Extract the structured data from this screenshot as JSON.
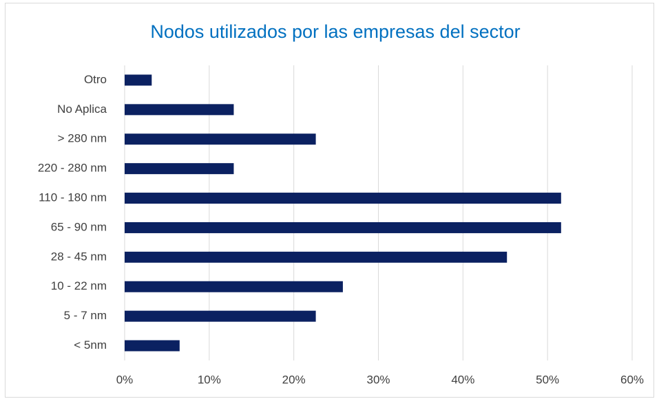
{
  "chart_data": {
    "type": "bar",
    "orientation": "horizontal",
    "title": "Nodos utilizados por las empresas del sector",
    "categories": [
      "Otro",
      "No Aplica",
      "> 280 nm",
      "220 - 280 nm",
      "110 - 180 nm",
      "65 - 90 nm",
      "28 - 45 nm",
      "10 - 22 nm",
      "5 - 7 nm",
      "< 5nm"
    ],
    "values": [
      3.2,
      12.9,
      22.6,
      12.9,
      51.6,
      51.6,
      45.2,
      25.8,
      22.6,
      6.5
    ],
    "color": "#0b2161",
    "xlim": [
      0,
      60
    ],
    "xticks": [
      {
        "value": 0,
        "label": "0%"
      },
      {
        "value": 10,
        "label": "10%"
      },
      {
        "value": 20,
        "label": "20%"
      },
      {
        "value": 30,
        "label": "30%"
      },
      {
        "value": 40,
        "label": "40%"
      },
      {
        "value": 50,
        "label": "50%"
      },
      {
        "value": 60,
        "label": "60%"
      }
    ],
    "grid": true
  }
}
